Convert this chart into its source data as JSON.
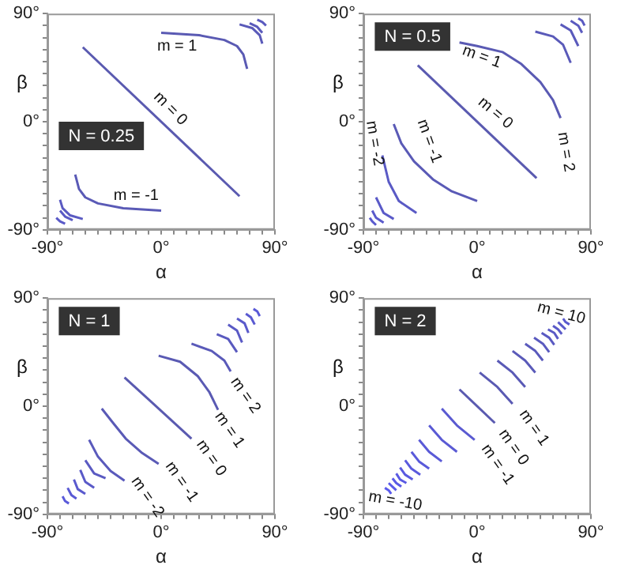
{
  "chart_data": [
    {
      "type": "line",
      "title": "N = 0.25",
      "xlabel": "α",
      "ylabel": "β",
      "xlim": [
        -90,
        90
      ],
      "ylim": [
        -90,
        90
      ],
      "xticks": [
        {
          "value": -90,
          "label": "-90°"
        },
        {
          "value": -80,
          "label": null
        },
        {
          "value": -70,
          "label": null
        },
        {
          "value": -60,
          "label": null
        },
        {
          "value": -50,
          "label": null
        },
        {
          "value": -40,
          "label": null
        },
        {
          "value": -30,
          "label": null
        },
        {
          "value": -20,
          "label": null
        },
        {
          "value": -10,
          "label": null
        },
        {
          "value": 0,
          "label": "0°"
        },
        {
          "value": 10,
          "label": null
        },
        {
          "value": 20,
          "label": null
        },
        {
          "value": 30,
          "label": null
        },
        {
          "value": 40,
          "label": null
        },
        {
          "value": 50,
          "label": null
        },
        {
          "value": 60,
          "label": null
        },
        {
          "value": 70,
          "label": null
        },
        {
          "value": 80,
          "label": null
        },
        {
          "value": 90,
          "label": "90°"
        }
      ],
      "yticks": [
        {
          "value": -90,
          "label": "-90°"
        },
        {
          "value": -80,
          "label": null
        },
        {
          "value": -70,
          "label": null
        },
        {
          "value": -60,
          "label": null
        },
        {
          "value": -50,
          "label": null
        },
        {
          "value": -40,
          "label": null
        },
        {
          "value": -30,
          "label": null
        },
        {
          "value": -20,
          "label": null
        },
        {
          "value": -10,
          "label": null
        },
        {
          "value": 0,
          "label": "0°"
        },
        {
          "value": 10,
          "label": null
        },
        {
          "value": 20,
          "label": null
        },
        {
          "value": 30,
          "label": null
        },
        {
          "value": 40,
          "label": null
        },
        {
          "value": 50,
          "label": null
        },
        {
          "value": 60,
          "label": null
        },
        {
          "value": 70,
          "label": null
        },
        {
          "value": 80,
          "label": null
        },
        {
          "value": 90,
          "label": "90°"
        }
      ],
      "series": [
        {
          "color": "#5a5ab0",
          "x": [
            -62,
            62
          ],
          "values": [
            62,
            -62
          ]
        },
        {
          "color": "#5a5ab3",
          "x": [
            0,
            30,
            50,
            60,
            65,
            68
          ],
          "values": [
            74,
            72,
            68,
            63,
            56,
            44
          ]
        },
        {
          "color": "#5a5ab6",
          "x": [
            -68,
            -65,
            -60,
            -50,
            -30,
            0
          ],
          "values": [
            -44,
            -56,
            -63,
            -68,
            -72,
            -74
          ]
        },
        {
          "color": "#5a5ab9",
          "x": [
            62,
            72,
            78,
            80
          ],
          "values": [
            81,
            78,
            72,
            65
          ]
        },
        {
          "color": "#5a5abc",
          "x": [
            70,
            76,
            80
          ],
          "values": [
            82,
            79,
            74
          ]
        },
        {
          "color": "#5a5abf",
          "x": [
            76,
            80,
            83
          ],
          "values": [
            85,
            83,
            80
          ]
        },
        {
          "color": "#5a5ac2",
          "x": [
            -80,
            -78,
            -72,
            -62
          ],
          "values": [
            -65,
            -72,
            -78,
            -81
          ]
        },
        {
          "color": "#5a5ac5",
          "x": [
            -80,
            -76,
            -70
          ],
          "values": [
            -74,
            -79,
            -82
          ]
        },
        {
          "color": "#5a5ac8",
          "x": [
            -83,
            -80,
            -76
          ],
          "values": [
            -80,
            -83,
            -85
          ]
        }
      ],
      "annotations": [
        "m = 1",
        "m = 0",
        "m = -1"
      ]
    },
    {
      "type": "line",
      "title": "N = 0.5",
      "xlabel": "α",
      "ylabel": "β",
      "xlim": [
        -90,
        90
      ],
      "ylim": [
        -90,
        90
      ],
      "xticks": [
        {
          "value": -90,
          "label": "-90°"
        },
        {
          "value": -80,
          "label": null
        },
        {
          "value": -70,
          "label": null
        },
        {
          "value": -60,
          "label": null
        },
        {
          "value": -50,
          "label": null
        },
        {
          "value": -40,
          "label": null
        },
        {
          "value": -30,
          "label": null
        },
        {
          "value": -20,
          "label": null
        },
        {
          "value": -10,
          "label": null
        },
        {
          "value": 0,
          "label": "0°"
        },
        {
          "value": 10,
          "label": null
        },
        {
          "value": 20,
          "label": null
        },
        {
          "value": 30,
          "label": null
        },
        {
          "value": 40,
          "label": null
        },
        {
          "value": 50,
          "label": null
        },
        {
          "value": 60,
          "label": null
        },
        {
          "value": 70,
          "label": null
        },
        {
          "value": 80,
          "label": null
        },
        {
          "value": 90,
          "label": "90°"
        }
      ],
      "yticks": [
        {
          "value": -90,
          "label": "-90°"
        },
        {
          "value": -80,
          "label": null
        },
        {
          "value": -70,
          "label": null
        },
        {
          "value": -60,
          "label": null
        },
        {
          "value": -50,
          "label": null
        },
        {
          "value": -40,
          "label": null
        },
        {
          "value": -30,
          "label": null
        },
        {
          "value": -20,
          "label": null
        },
        {
          "value": -10,
          "label": null
        },
        {
          "value": 0,
          "label": "0°"
        },
        {
          "value": 10,
          "label": null
        },
        {
          "value": 20,
          "label": null
        },
        {
          "value": 30,
          "label": null
        },
        {
          "value": 40,
          "label": null
        },
        {
          "value": 50,
          "label": null
        },
        {
          "value": 60,
          "label": null
        },
        {
          "value": 70,
          "label": null
        },
        {
          "value": 80,
          "label": null
        },
        {
          "value": 90,
          "label": "90°"
        }
      ],
      "series": [
        {
          "color": "#5a5ab0",
          "x": [
            -47,
            47
          ],
          "values": [
            47,
            -47
          ]
        },
        {
          "color": "#5a5ab3",
          "x": [
            -14,
            0,
            20,
            35,
            50,
            60,
            66
          ],
          "values": [
            66,
            63,
            58,
            48,
            33,
            18,
            3
          ]
        },
        {
          "color": "#5a5ab6",
          "x": [
            -66,
            -60,
            -50,
            -35,
            -20,
            0
          ],
          "values": [
            -2,
            -18,
            -33,
            -48,
            -58,
            -66
          ]
        },
        {
          "color": "#5a5ab9",
          "x": [
            46,
            60,
            68,
            74
          ],
          "values": [
            75,
            71,
            64,
            49
          ]
        },
        {
          "color": "#5a5abc",
          "x": [
            66,
            74,
            80
          ],
          "values": [
            81,
            76,
            63
          ]
        },
        {
          "color": "#5a5abf",
          "x": [
            74,
            80,
            83
          ],
          "values": [
            84,
            80,
            74
          ]
        },
        {
          "color": "#5a5ac2",
          "x": [
            80,
            83,
            85
          ],
          "values": [
            86,
            84,
            80
          ]
        },
        {
          "color": "#5a5ac5",
          "x": [
            -75,
            -70,
            -62,
            -48
          ],
          "values": [
            -28,
            -50,
            -66,
            -76
          ]
        },
        {
          "color": "#5a5ac8",
          "x": [
            -80,
            -74,
            -66
          ],
          "values": [
            -63,
            -76,
            -81
          ]
        },
        {
          "color": "#5a5acb",
          "x": [
            -83,
            -80,
            -74
          ],
          "values": [
            -74,
            -80,
            -84
          ]
        },
        {
          "color": "#5a5ace",
          "x": [
            -85,
            -83,
            -80
          ],
          "values": [
            -80,
            -83,
            -86
          ]
        }
      ],
      "annotations": [
        "m = 1",
        "m = 0",
        "m = 2",
        "m = -1",
        "m = -2"
      ]
    },
    {
      "type": "line",
      "title": "N = 1",
      "xlabel": "α",
      "ylabel": "β",
      "xlim": [
        -90,
        90
      ],
      "ylim": [
        -90,
        90
      ],
      "xticks": [
        {
          "value": -90,
          "label": "-90°"
        },
        {
          "value": -80,
          "label": null
        },
        {
          "value": -70,
          "label": null
        },
        {
          "value": -60,
          "label": null
        },
        {
          "value": -50,
          "label": null
        },
        {
          "value": -40,
          "label": null
        },
        {
          "value": -30,
          "label": null
        },
        {
          "value": -20,
          "label": null
        },
        {
          "value": -10,
          "label": null
        },
        {
          "value": 0,
          "label": "0°"
        },
        {
          "value": 10,
          "label": null
        },
        {
          "value": 20,
          "label": null
        },
        {
          "value": 30,
          "label": null
        },
        {
          "value": 40,
          "label": null
        },
        {
          "value": 50,
          "label": null
        },
        {
          "value": 60,
          "label": null
        },
        {
          "value": 70,
          "label": null
        },
        {
          "value": 80,
          "label": null
        },
        {
          "value": 90,
          "label": "90°"
        }
      ],
      "yticks": [
        {
          "value": -90,
          "label": "-90°"
        },
        {
          "value": -80,
          "label": null
        },
        {
          "value": -70,
          "label": null
        },
        {
          "value": -60,
          "label": null
        },
        {
          "value": -50,
          "label": null
        },
        {
          "value": -40,
          "label": null
        },
        {
          "value": -30,
          "label": null
        },
        {
          "value": -20,
          "label": null
        },
        {
          "value": -10,
          "label": null
        },
        {
          "value": 0,
          "label": "0°"
        },
        {
          "value": 10,
          "label": null
        },
        {
          "value": 20,
          "label": null
        },
        {
          "value": 30,
          "label": null
        },
        {
          "value": 40,
          "label": null
        },
        {
          "value": 50,
          "label": null
        },
        {
          "value": 60,
          "label": null
        },
        {
          "value": 70,
          "label": null
        },
        {
          "value": 80,
          "label": null
        },
        {
          "value": 90,
          "label": "90°"
        }
      ],
      "series": [
        {
          "color": "#5a5ab0",
          "x": [
            -29,
            24
          ],
          "values": [
            24,
            -27
          ]
        },
        {
          "color": "#5a5ab3",
          "x": [
            -2,
            15,
            29,
            38,
            45
          ],
          "values": [
            42,
            37,
            25,
            12,
            -3
          ]
        },
        {
          "color": "#5a5ab6",
          "x": [
            -47,
            -38,
            -28,
            -15,
            -2
          ],
          "values": [
            -2,
            -14,
            -27,
            -39,
            -48
          ]
        },
        {
          "color": "#5a5ab9",
          "x": [
            24,
            40,
            50,
            55
          ],
          "values": [
            52,
            46,
            38,
            29
          ]
        },
        {
          "color": "#5a5abc",
          "x": [
            -57,
            -50,
            -40,
            -29
          ],
          "values": [
            -28,
            -42,
            -54,
            -62
          ]
        },
        {
          "color": "#5a5abf",
          "x": [
            44,
            53,
            60
          ],
          "values": [
            60,
            56,
            45
          ]
        },
        {
          "color": "#5a5ac2",
          "x": [
            -60,
            -53,
            -44
          ],
          "values": [
            -45,
            -56,
            -60
          ]
        },
        {
          "color": "#5a5ac5",
          "x": [
            53,
            60,
            64
          ],
          "values": [
            68,
            63,
            53
          ]
        },
        {
          "color": "#5a5ac8",
          "x": [
            -64,
            -60,
            -53
          ],
          "values": [
            -53,
            -63,
            -68
          ]
        },
        {
          "color": "#5a5acb",
          "x": [
            60,
            66,
            69
          ],
          "values": [
            73,
            69,
            61
          ]
        },
        {
          "color": "#5a5ace",
          "x": [
            -69,
            -66,
            -60
          ],
          "values": [
            -61,
            -69,
            -73
          ]
        },
        {
          "color": "#5a5ad1",
          "x": [
            67,
            71,
            74
          ],
          "values": [
            77,
            74,
            68
          ]
        },
        {
          "color": "#5a5ad4",
          "x": [
            -74,
            -71,
            -67
          ],
          "values": [
            -68,
            -74,
            -77
          ]
        },
        {
          "color": "#5a5ad7",
          "x": [
            73,
            76,
            78
          ],
          "values": [
            81,
            79,
            75
          ]
        },
        {
          "color": "#5a5ada",
          "x": [
            -78,
            -76,
            -73
          ],
          "values": [
            -75,
            -79,
            -81
          ]
        }
      ],
      "annotations": [
        "m = 2",
        "m = 1",
        "m = 0",
        "m = -1",
        "m = -2"
      ]
    },
    {
      "type": "line",
      "title": "N = 2",
      "xlabel": "α",
      "ylabel": "β",
      "xlim": [
        -90,
        90
      ],
      "ylim": [
        -90,
        90
      ],
      "xticks": [
        {
          "value": -90,
          "label": "-90°"
        },
        {
          "value": -80,
          "label": null
        },
        {
          "value": -70,
          "label": null
        },
        {
          "value": -60,
          "label": null
        },
        {
          "value": -50,
          "label": null
        },
        {
          "value": -40,
          "label": null
        },
        {
          "value": -30,
          "label": null
        },
        {
          "value": -20,
          "label": null
        },
        {
          "value": -10,
          "label": null
        },
        {
          "value": 0,
          "label": "0°"
        },
        {
          "value": 10,
          "label": null
        },
        {
          "value": 20,
          "label": null
        },
        {
          "value": 30,
          "label": null
        },
        {
          "value": 40,
          "label": null
        },
        {
          "value": 50,
          "label": null
        },
        {
          "value": 60,
          "label": null
        },
        {
          "value": 70,
          "label": null
        },
        {
          "value": 80,
          "label": null
        },
        {
          "value": 90,
          "label": "90°"
        }
      ],
      "yticks": [
        {
          "value": -90,
          "label": "-90°"
        },
        {
          "value": -80,
          "label": null
        },
        {
          "value": -70,
          "label": null
        },
        {
          "value": -60,
          "label": null
        },
        {
          "value": -50,
          "label": null
        },
        {
          "value": -40,
          "label": null
        },
        {
          "value": -30,
          "label": null
        },
        {
          "value": -20,
          "label": null
        },
        {
          "value": -10,
          "label": null
        },
        {
          "value": 0,
          "label": "0°"
        },
        {
          "value": 10,
          "label": null
        },
        {
          "value": 20,
          "label": null
        },
        {
          "value": 30,
          "label": null
        },
        {
          "value": 40,
          "label": null
        },
        {
          "value": 50,
          "label": null
        },
        {
          "value": 60,
          "label": null
        },
        {
          "value": 70,
          "label": null
        },
        {
          "value": 80,
          "label": null
        },
        {
          "value": 90,
          "label": "90°"
        }
      ],
      "series": [
        {
          "color": "#5a5ab0",
          "x": [
            -14,
            14
          ],
          "values": [
            14,
            -14
          ]
        },
        {
          "color": "#5a5ab3",
          "x": [
            2,
            16,
            28
          ],
          "values": [
            28,
            16,
            2
          ]
        },
        {
          "color": "#5a5ab6",
          "x": [
            16,
            28,
            38
          ],
          "values": [
            38,
            28,
            16
          ]
        },
        {
          "color": "#5a5ab9",
          "x": [
            28,
            38,
            46
          ],
          "values": [
            46,
            38,
            28
          ]
        },
        {
          "color": "#5a5abc",
          "x": [
            38,
            46,
            52
          ],
          "values": [
            52,
            46,
            38
          ]
        },
        {
          "color": "#5a5abf",
          "x": [
            45,
            52,
            57
          ],
          "values": [
            57,
            52,
            45
          ]
        },
        {
          "color": "#5a5ac2",
          "x": [
            51,
            57,
            61
          ],
          "values": [
            61,
            57,
            51
          ]
        },
        {
          "color": "#5a5ac5",
          "x": [
            56,
            61,
            64
          ],
          "values": [
            64,
            61,
            56
          ]
        },
        {
          "color": "#5a5ac8",
          "x": [
            60,
            64,
            67
          ],
          "values": [
            67,
            64,
            60
          ]
        },
        {
          "color": "#5a5acb",
          "x": [
            64,
            67,
            70
          ],
          "values": [
            70,
            67,
            64
          ]
        },
        {
          "color": "#5a5ace",
          "x": [
            68,
            70,
            73
          ],
          "values": [
            73,
            70,
            68
          ]
        },
        {
          "color": "#5a5ad1",
          "x": [
            -28,
            -16,
            -2
          ],
          "values": [
            -2,
            -16,
            -28
          ]
        },
        {
          "color": "#5a5ad4",
          "x": [
            -38,
            -28,
            -16
          ],
          "values": [
            -16,
            -28,
            -38
          ]
        },
        {
          "color": "#5a5ad7",
          "x": [
            -46,
            -38,
            -28
          ],
          "values": [
            -28,
            -38,
            -46
          ]
        },
        {
          "color": "#5a5ada",
          "x": [
            -52,
            -46,
            -38
          ],
          "values": [
            -38,
            -46,
            -52
          ]
        },
        {
          "color": "#5a5add",
          "x": [
            -57,
            -52,
            -45
          ],
          "values": [
            -45,
            -52,
            -57
          ]
        },
        {
          "color": "#5a5ae0",
          "x": [
            -61,
            -57,
            -51
          ],
          "values": [
            -51,
            -57,
            -61
          ]
        },
        {
          "color": "#5a5ae3",
          "x": [
            -64,
            -61,
            -56
          ],
          "values": [
            -56,
            -61,
            -64
          ]
        },
        {
          "color": "#5a5ae6",
          "x": [
            -67,
            -64,
            -60
          ],
          "values": [
            -60,
            -64,
            -67
          ]
        },
        {
          "color": "#5a5ae9",
          "x": [
            -70,
            -67,
            -64
          ],
          "values": [
            -64,
            -67,
            -70
          ]
        },
        {
          "color": "#5a5aec",
          "x": [
            -73,
            -70,
            -68
          ],
          "values": [
            -68,
            -70,
            -73
          ]
        }
      ],
      "annotations": [
        "m = 10",
        "m = 1",
        "m = 0",
        "m = -1",
        "m = -10"
      ]
    }
  ]
}
